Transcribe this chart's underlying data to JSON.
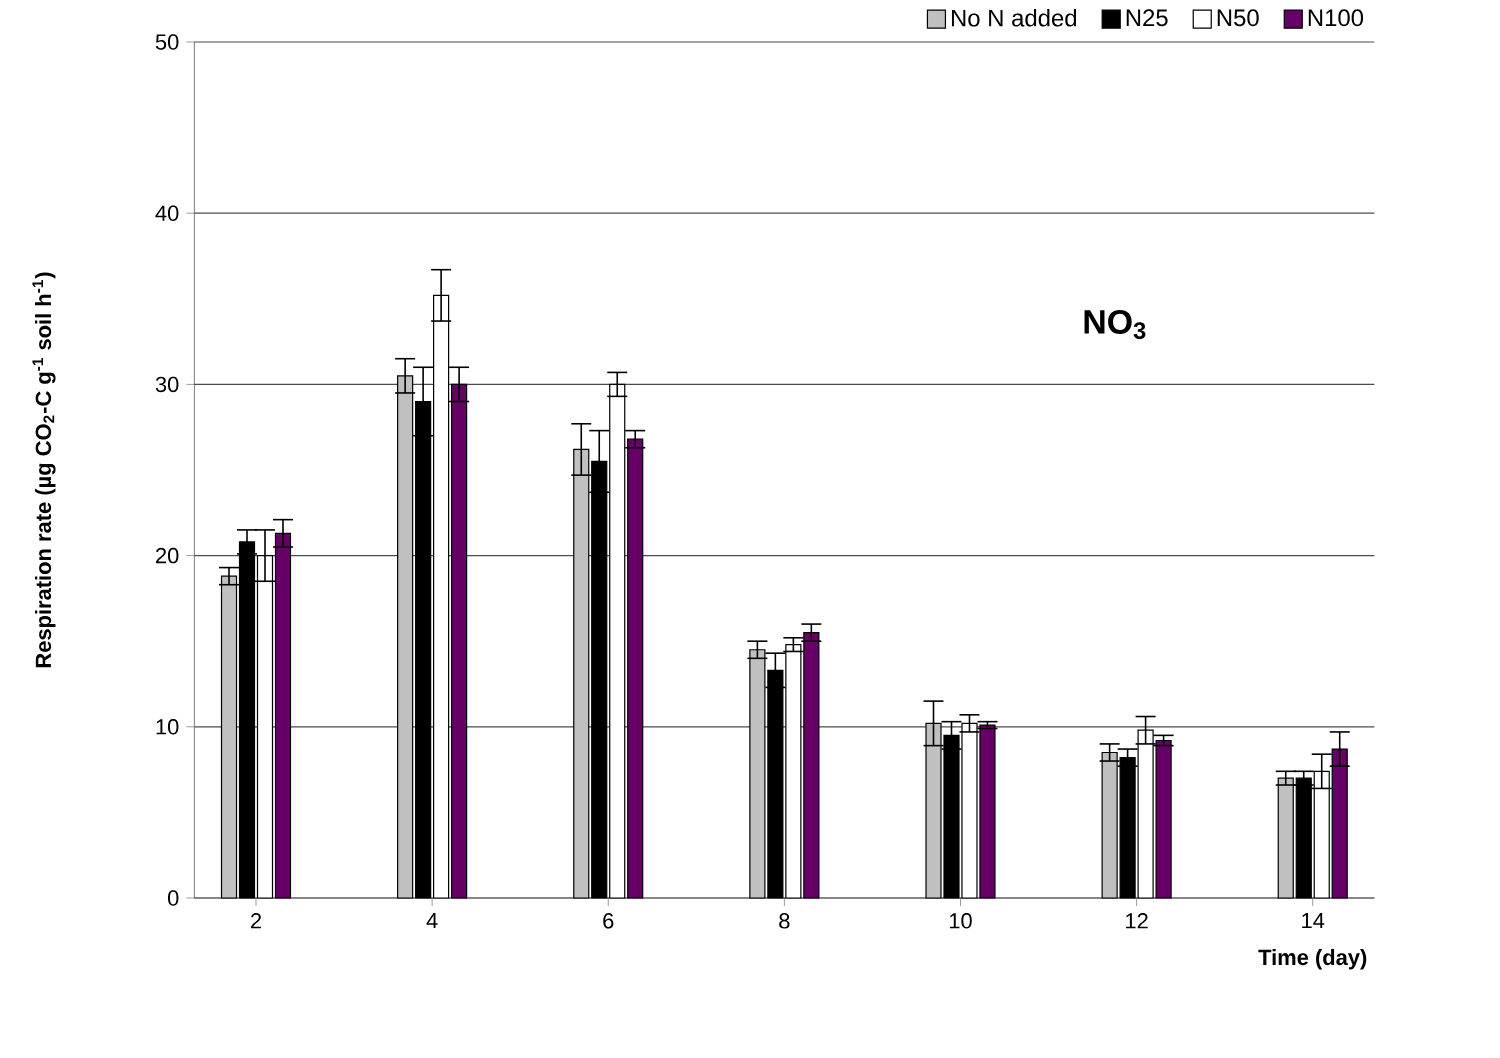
{
  "chart_data": {
    "type": "bar",
    "xlabel": "Time (day)",
    "ylabel": "Respiration rate (µg CO$_{2}$-C g$^{-1}$ soil h$^{-1}$)",
    "categories": [
      "2",
      "4",
      "6",
      "8",
      "10",
      "12",
      "14"
    ],
    "series": [
      {
        "name": "No N added",
        "color": "#c0c0c0",
        "values": [
          18.8,
          30.5,
          26.2,
          14.5,
          10.2,
          8.5,
          7.0
        ],
        "errors": [
          0.5,
          1.0,
          1.5,
          0.5,
          1.3,
          0.5,
          0.4
        ]
      },
      {
        "name": "N25",
        "color": "#000000",
        "values": [
          20.8,
          29.0,
          25.5,
          13.3,
          9.5,
          8.2,
          7.0
        ],
        "errors": [
          0.7,
          2.0,
          1.8,
          1.0,
          0.8,
          0.5,
          0.4
        ]
      },
      {
        "name": "N50",
        "color": "#ffffff",
        "values": [
          20.0,
          35.2,
          30.0,
          14.8,
          10.2,
          9.8,
          7.4
        ],
        "errors": [
          1.5,
          1.5,
          0.7,
          0.4,
          0.5,
          0.8,
          1.0
        ]
      },
      {
        "name": "N100",
        "color": "#660066",
        "values": [
          21.3,
          30.0,
          26.8,
          15.5,
          10.1,
          9.2,
          8.7
        ],
        "errors": [
          0.8,
          1.0,
          0.5,
          0.5,
          0.2,
          0.3,
          1.0
        ]
      }
    ],
    "ylim": [
      0,
      50
    ],
    "yticks": [
      0,
      10,
      20,
      30,
      40,
      50
    ],
    "grid": "y",
    "legend": "top right",
    "annotations": [
      "NO$_{3}$"
    ]
  }
}
